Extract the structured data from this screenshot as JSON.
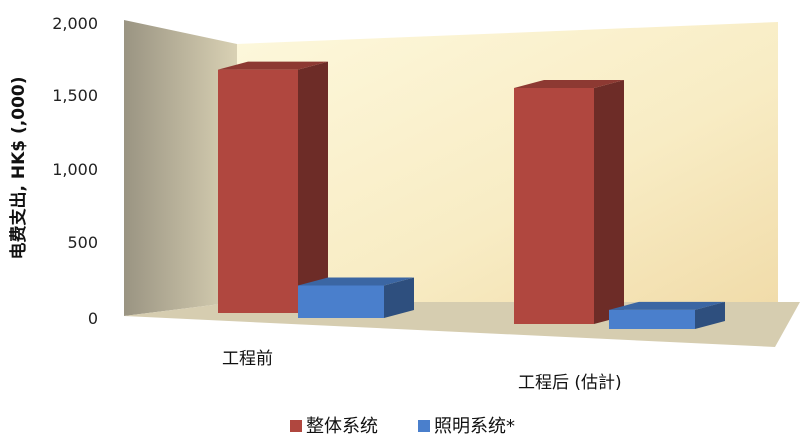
{
  "chart_data": {
    "type": "bar",
    "ylabel": "电费支出, HK$ (,000)",
    "categories": [
      "工程前",
      "工程后 (估計)"
    ],
    "series": [
      {
        "name": "整体系统",
        "values": [
          1650,
          1600
        ],
        "color": "#b0473f"
      },
      {
        "name": "照明系统*",
        "values": [
          220,
          130
        ],
        "color": "#4a7fcc"
      }
    ],
    "yticks": [
      "0",
      "500",
      "1,000",
      "1,500",
      "2,000"
    ],
    "ylim": [
      0,
      2000
    ],
    "legend_position": "bottom",
    "grid": false
  }
}
